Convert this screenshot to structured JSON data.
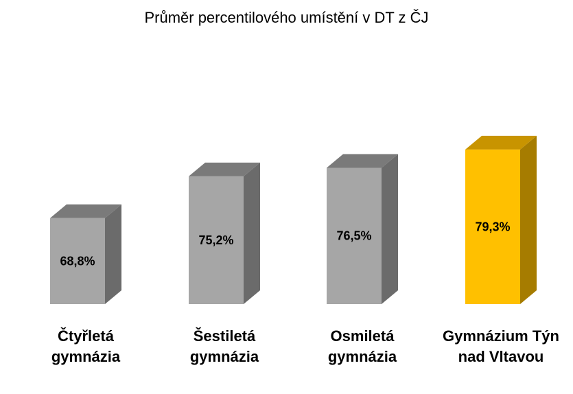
{
  "chart_data": {
    "type": "bar",
    "title": "Průměr percentilového umístění v DT z ČJ",
    "categories": [
      "Čtyřletá gymnázia",
      "Šestiletá gymnázia",
      "Osmiletá gymnázia",
      "Gymnázium Týn nad Vltavou"
    ],
    "values": [
      68.8,
      75.2,
      76.5,
      79.3
    ],
    "data_labels": [
      "68,8%",
      "75,2%",
      "76,5%",
      "79,3%"
    ],
    "unit": "%",
    "xlabel": "",
    "ylabel": "",
    "grid": false,
    "legend": "none",
    "colors": {
      "default_front": "#a6a6a6",
      "default_side": "#6b6b6b",
      "default_top": "#7a7a7a",
      "highlight_front": "#ffc000",
      "highlight_side": "#a67c00",
      "highlight_top": "#c89400"
    },
    "highlight_index": 3
  }
}
